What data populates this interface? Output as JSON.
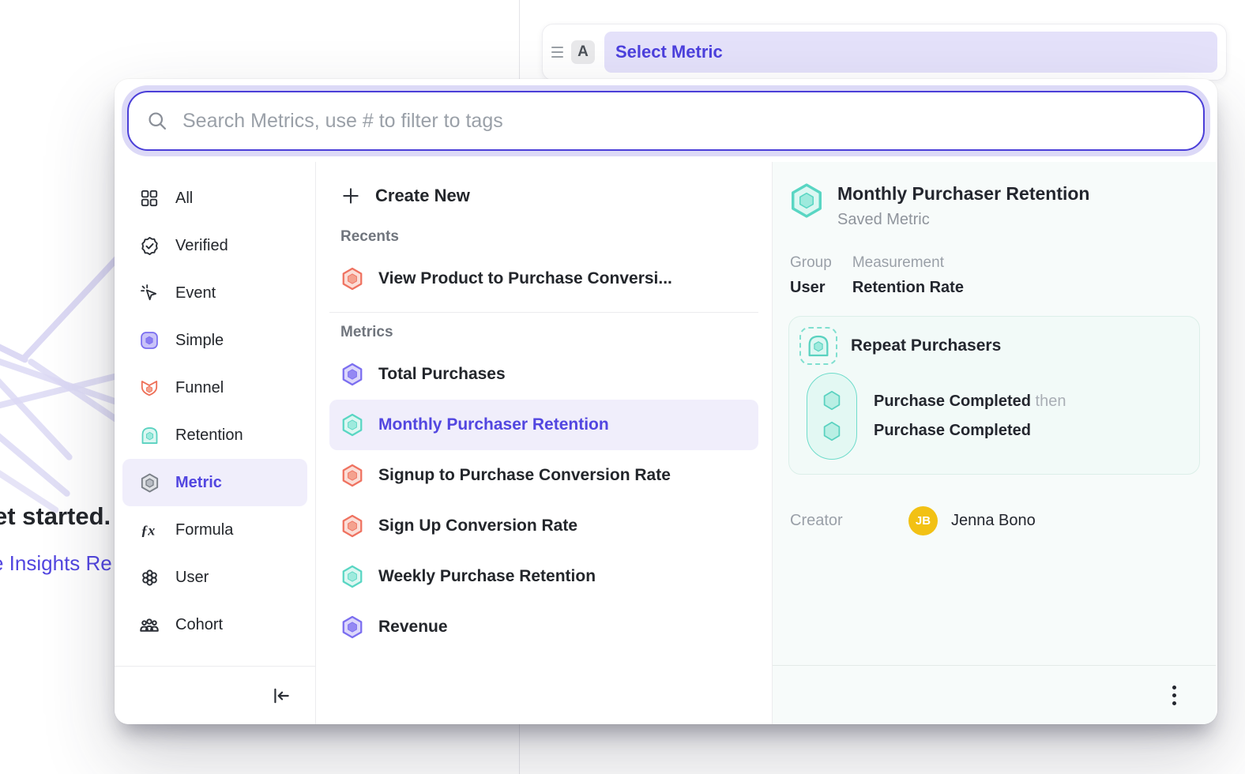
{
  "background": {
    "partial_heading": "et started.",
    "partial_link": "e Insights Re",
    "bar": {
      "block_label": "A",
      "pill_label": "Select Metric"
    }
  },
  "search": {
    "placeholder": "Search Metrics, use # to filter to tags"
  },
  "sidebar": {
    "items": [
      {
        "label": "All",
        "icon": "grid-icon",
        "selected": false
      },
      {
        "label": "Verified",
        "icon": "verified-icon",
        "selected": false
      },
      {
        "label": "Event",
        "icon": "event-icon",
        "selected": false
      },
      {
        "label": "Simple",
        "icon": "simple-icon",
        "selected": false
      },
      {
        "label": "Funnel",
        "icon": "funnel-icon",
        "selected": false
      },
      {
        "label": "Retention",
        "icon": "retention-icon",
        "selected": false
      },
      {
        "label": "Metric",
        "icon": "metric-icon",
        "selected": true
      },
      {
        "label": "Formula",
        "icon": "formula-icon",
        "selected": false
      },
      {
        "label": "User",
        "icon": "user-icon",
        "selected": false
      },
      {
        "label": "Cohort",
        "icon": "cohort-icon",
        "selected": false
      }
    ]
  },
  "list": {
    "create_new_label": "Create New",
    "recents_header": "Recents",
    "recents": [
      {
        "label": "View Product to Purchase Conversi...",
        "color": "red",
        "selected": false
      }
    ],
    "metrics_header": "Metrics",
    "metrics": [
      {
        "label": "Total Purchases",
        "color": "purple",
        "selected": false
      },
      {
        "label": "Monthly Purchaser Retention",
        "color": "teal",
        "selected": true
      },
      {
        "label": "Signup to Purchase Conversion Rate",
        "color": "red",
        "selected": false
      },
      {
        "label": "Sign Up Conversion Rate",
        "color": "red",
        "selected": false
      },
      {
        "label": "Weekly Purchase Retention",
        "color": "teal",
        "selected": false
      },
      {
        "label": "Revenue",
        "color": "purple",
        "selected": false
      }
    ]
  },
  "details": {
    "title": "Monthly Purchaser Retention",
    "subtitle": "Saved Metric",
    "group_label": "Group",
    "group_value": "User",
    "measurement_label": "Measurement",
    "measurement_value": "Retention Rate",
    "definition": {
      "name": "Repeat Purchasers",
      "step1": "Purchase Completed",
      "connector": "then",
      "step2": "Purchase Completed"
    },
    "creator_label": "Creator",
    "creator_initials": "JB",
    "creator_name": "Jenna Bono"
  },
  "colors": {
    "accent_purple": "#5246e0",
    "selected_row_bg": "#f0eefb",
    "teal": "#59d6c3",
    "red": "#ef7260",
    "avatar_yellow": "#f2c114"
  }
}
